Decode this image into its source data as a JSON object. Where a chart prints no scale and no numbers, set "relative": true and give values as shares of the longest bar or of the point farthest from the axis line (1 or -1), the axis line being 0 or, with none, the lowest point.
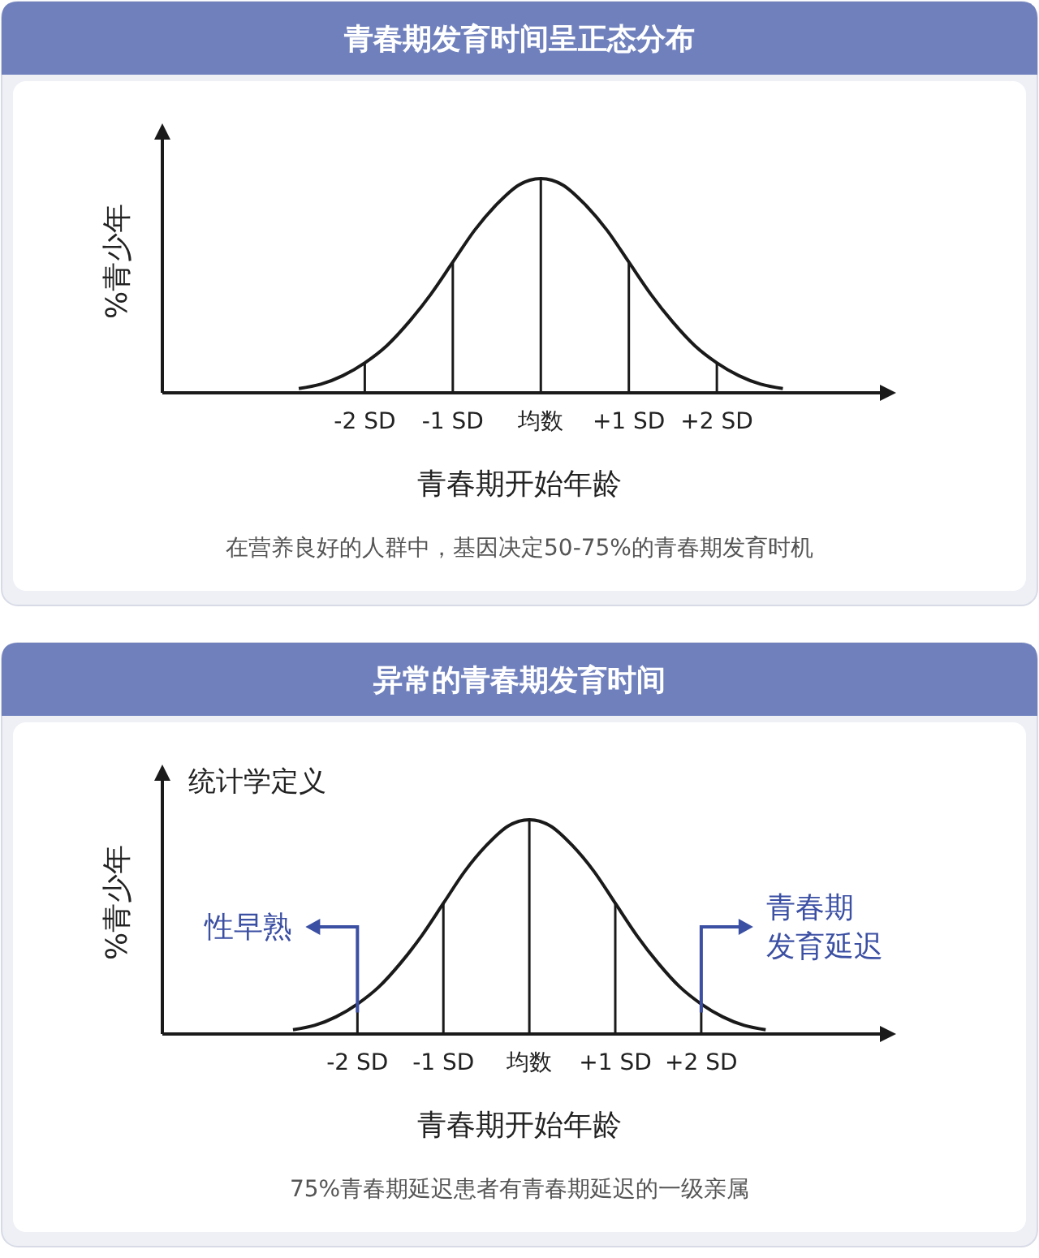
{
  "chart_data": [
    {
      "type": "line",
      "title": "青春期发育时间呈正态分布",
      "xlabel": "青春期开始年龄",
      "ylabel": "%青少年",
      "relative": true,
      "xlim": [
        -4.3,
        4.0
      ],
      "xticks": [
        {
          "value": -2,
          "label": "-2 SD"
        },
        {
          "value": -1,
          "label": "-1 SD"
        },
        {
          "value": 0,
          "label": "均数"
        },
        {
          "value": 1,
          "label": "+1 SD"
        },
        {
          "value": 2,
          "label": "+2 SD"
        }
      ],
      "tick_labels": "x",
      "series": [
        {
          "color": "#1a1a1a",
          "x": [
            -2.75,
            -2.5,
            -2.25,
            -2,
            -1.75,
            -1.5,
            -1.25,
            -1,
            -0.75,
            -0.5,
            -0.25,
            0,
            0.25,
            0.5,
            0.75,
            1,
            1.25,
            1.5,
            1.75,
            2,
            2.25,
            2.5,
            2.75
          ],
          "values": [
            0.02,
            0.04,
            0.08,
            0.14,
            0.22,
            0.33,
            0.46,
            0.61,
            0.76,
            0.88,
            0.97,
            1,
            0.97,
            0.88,
            0.76,
            0.61,
            0.46,
            0.33,
            0.22,
            0.14,
            0.08,
            0.04,
            0.02
          ]
        }
      ],
      "ref_lines": [
        {
          "axis": "x",
          "value": -2,
          "color": "#1a1a1a"
        },
        {
          "axis": "x",
          "value": -1,
          "color": "#1a1a1a"
        },
        {
          "axis": "x",
          "value": 0,
          "color": "#1a1a1a"
        },
        {
          "axis": "x",
          "value": 1,
          "color": "#1a1a1a"
        },
        {
          "axis": "x",
          "value": 2,
          "color": "#1a1a1a"
        }
      ],
      "annotations": [
        "在营养良好的人群中，基因决定50-75%的青春期发育时机"
      ]
    },
    {
      "type": "line",
      "title": "异常的青春期发育时间",
      "xlabel": "青春期开始年龄",
      "ylabel": "%青少年",
      "relative": true,
      "xlim": [
        -4.27,
        4.23
      ],
      "xticks": [
        {
          "value": -2,
          "label": "-2 SD"
        },
        {
          "value": -1,
          "label": "-1 SD"
        },
        {
          "value": 0,
          "label": "均数"
        },
        {
          "value": 1,
          "label": "+1 SD"
        },
        {
          "value": 2,
          "label": "+2 SD"
        }
      ],
      "tick_labels": "x",
      "series": [
        {
          "color": "#1a1a1a",
          "x": [
            -2.75,
            -2.5,
            -2.25,
            -2,
            -1.75,
            -1.5,
            -1.25,
            -1,
            -0.75,
            -0.5,
            -0.25,
            0,
            0.25,
            0.5,
            0.75,
            1,
            1.25,
            1.5,
            1.75,
            2,
            2.25,
            2.5,
            2.75
          ],
          "values": [
            0.02,
            0.04,
            0.08,
            0.14,
            0.22,
            0.33,
            0.46,
            0.61,
            0.76,
            0.88,
            0.97,
            1,
            0.97,
            0.88,
            0.76,
            0.61,
            0.46,
            0.33,
            0.22,
            0.14,
            0.08,
            0.04,
            0.02
          ]
        }
      ],
      "ref_lines": [
        {
          "axis": "x",
          "value": -2,
          "color": "#1a1a1a"
        },
        {
          "axis": "x",
          "value": -1,
          "color": "#1a1a1a"
        },
        {
          "axis": "x",
          "value": 0,
          "color": "#1a1a1a"
        },
        {
          "axis": "x",
          "value": 1,
          "color": "#1a1a1a"
        },
        {
          "axis": "x",
          "value": 2,
          "color": "#1a1a1a"
        }
      ],
      "annotations": [
        "统计学定义",
        "性早熟",
        "青春期发育延迟",
        "75%青春期延迟患者有青春期延迟的一级亲属"
      ]
    }
  ]
}
